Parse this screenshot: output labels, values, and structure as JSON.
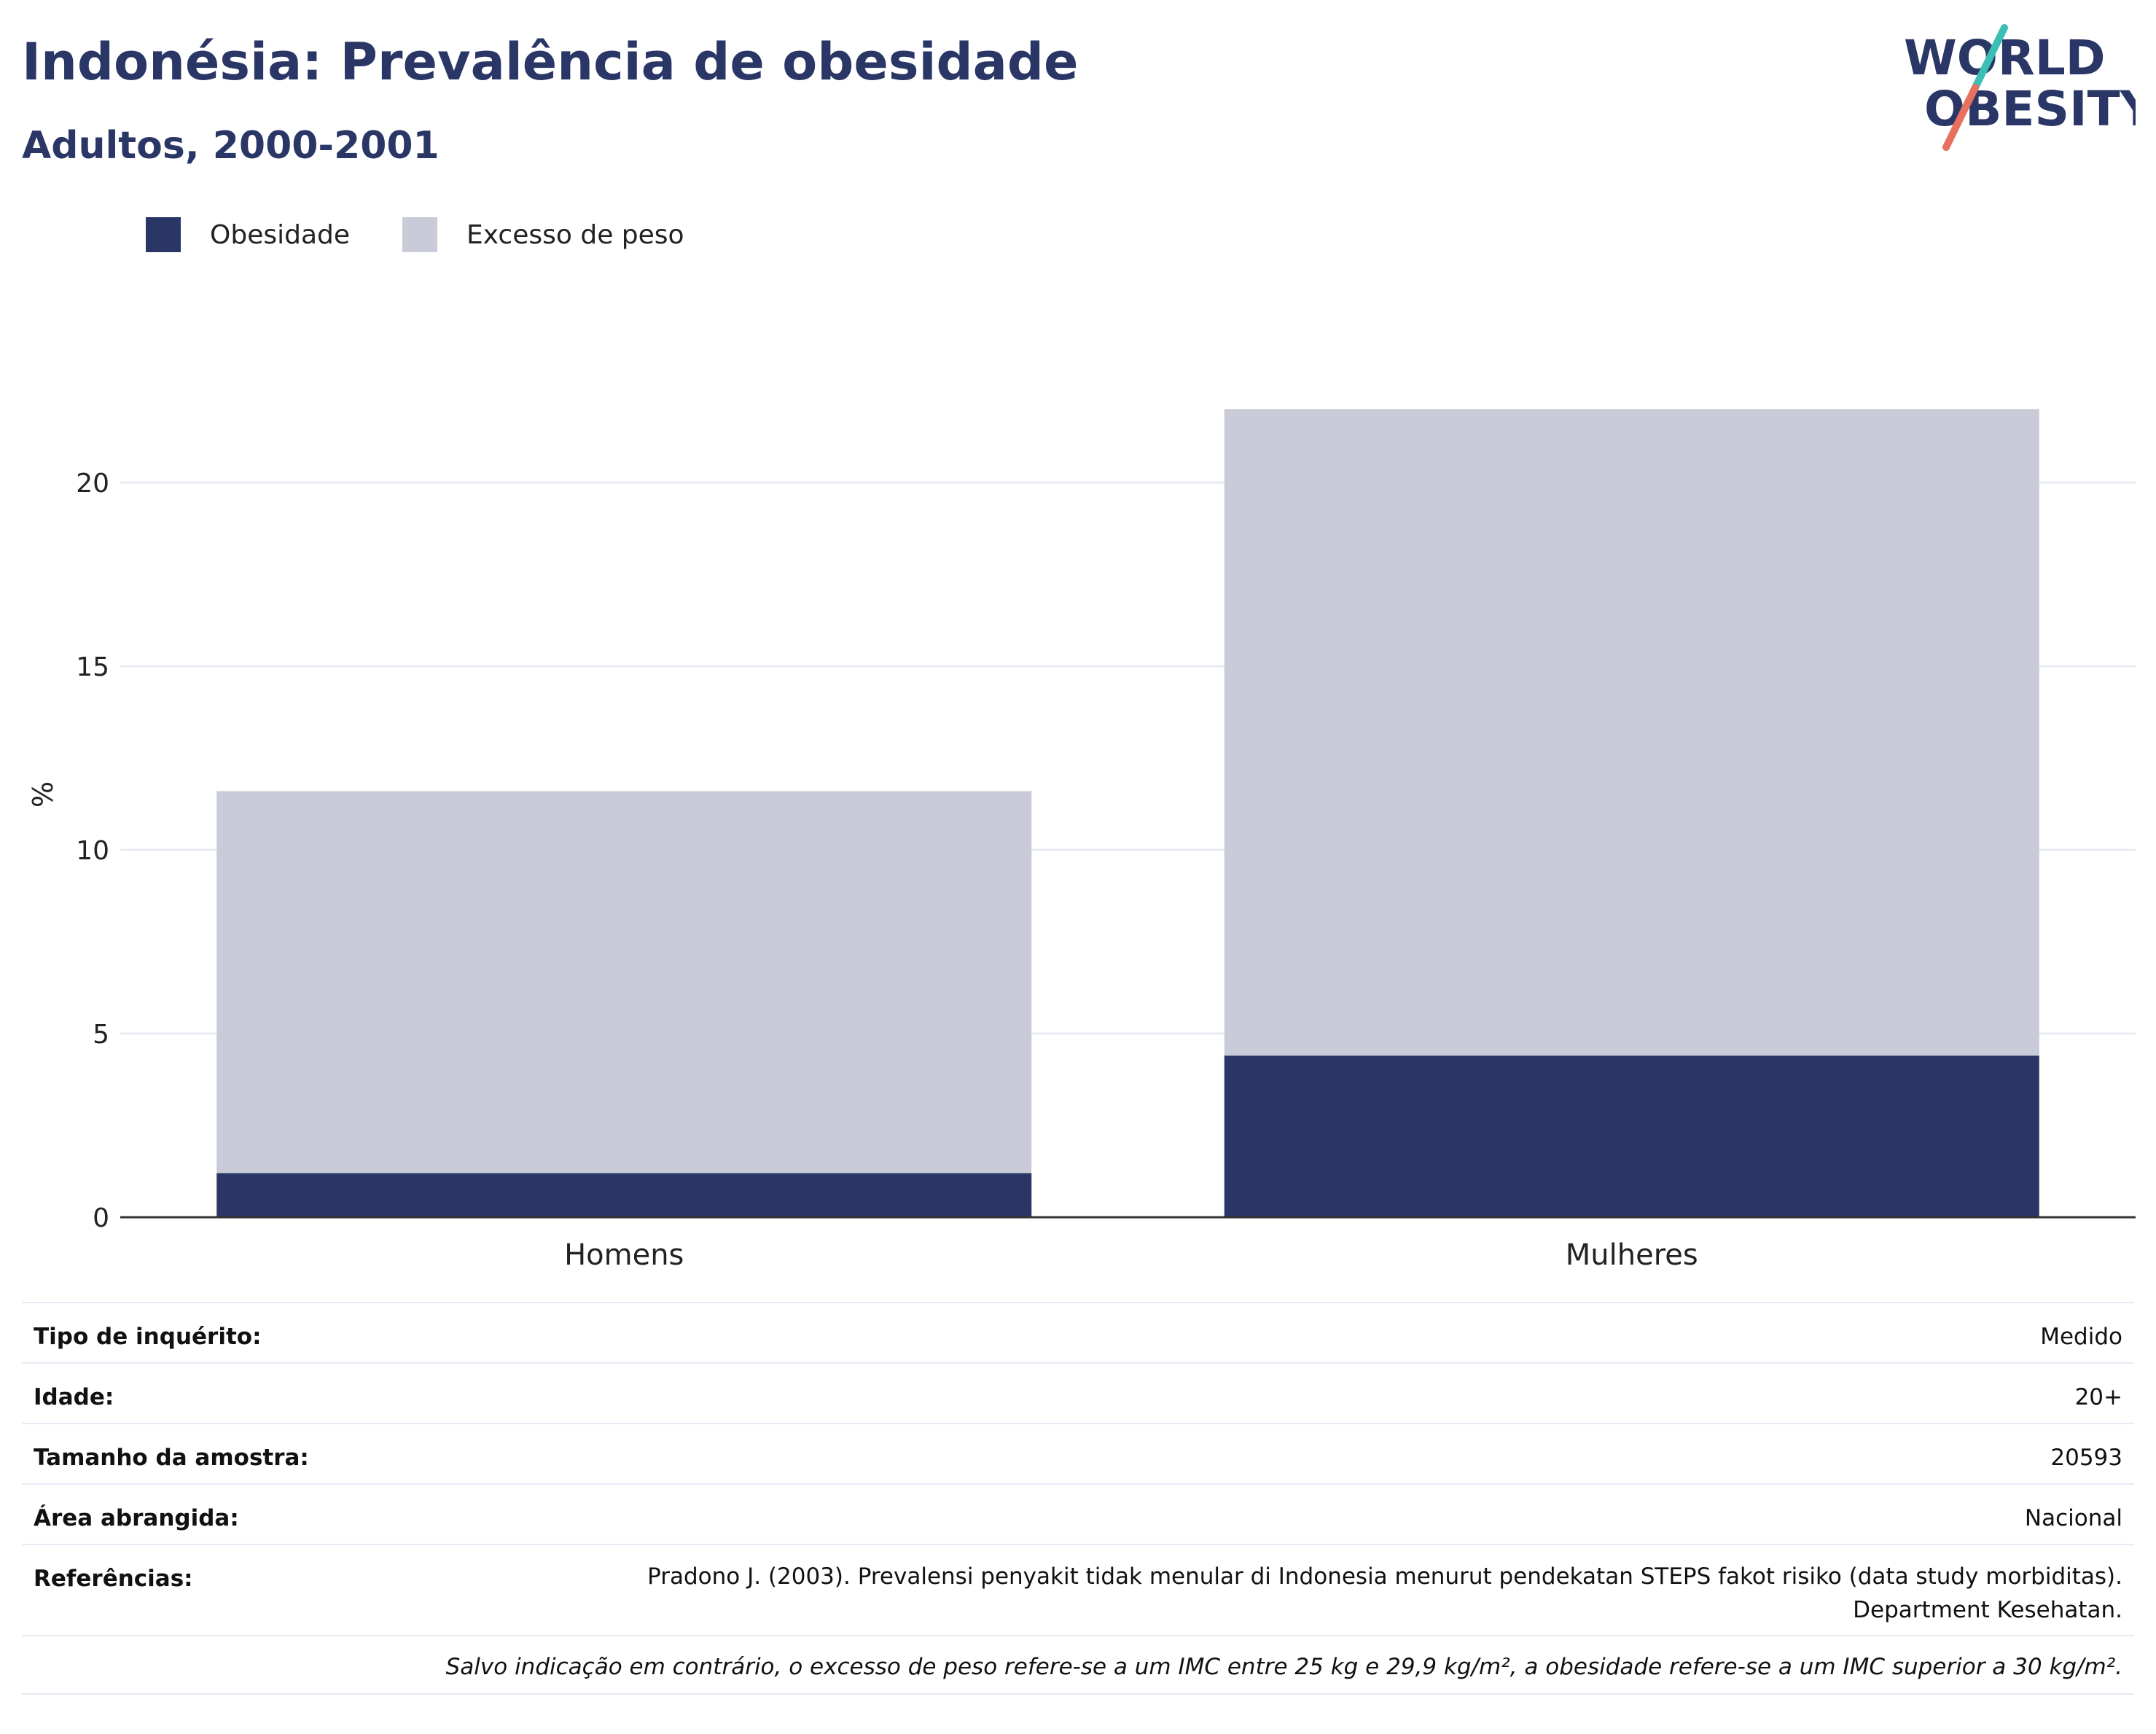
{
  "header": {
    "title": "Indonésia: Prevalência de obesidade",
    "subtitle": "Adultos, 2000-2001"
  },
  "logo": {
    "line1": "WORLD",
    "line2": "OBESITY"
  },
  "colors": {
    "obesity": "#2a3766",
    "overweight": "#c9ccd8",
    "title": "#2a3766",
    "grid": "#e9ebf4"
  },
  "chart_data": {
    "type": "bar",
    "stacked": true,
    "categories": [
      "Homens",
      "Mulheres"
    ],
    "series": [
      {
        "name": "Obesidade",
        "values": [
          1.2,
          4.4
        ]
      },
      {
        "name": "Excesso de peso",
        "values": [
          10.4,
          17.6
        ]
      }
    ],
    "ylabel": "%",
    "xlabel": "",
    "ylim": [
      0,
      23
    ],
    "yticks": [
      0,
      5,
      10,
      15,
      20
    ],
    "grid": true,
    "legend_position": "top-left"
  },
  "details": {
    "rows": [
      {
        "label": "Tipo de inquérito:",
        "value": "Medido"
      },
      {
        "label": "Idade:",
        "value": "20+"
      },
      {
        "label": "Tamanho da amostra:",
        "value": "20593"
      },
      {
        "label": "Área abrangida:",
        "value": "Nacional"
      },
      {
        "label": "Referências:",
        "value_line1": "Pradono J. (2003). Prevalensi penyakit tidak menular di Indonesia menurut pendekatan STEPS fakot risiko (data study morbiditas).",
        "value_line2": "Department Kesehatan."
      }
    ],
    "note": "Salvo indicação em contrário, o excesso de peso refere-se a um IMC entre 25 kg e 29,9 kg/m², a obesidade refere-se a um IMC superior a 30 kg/m²."
  }
}
